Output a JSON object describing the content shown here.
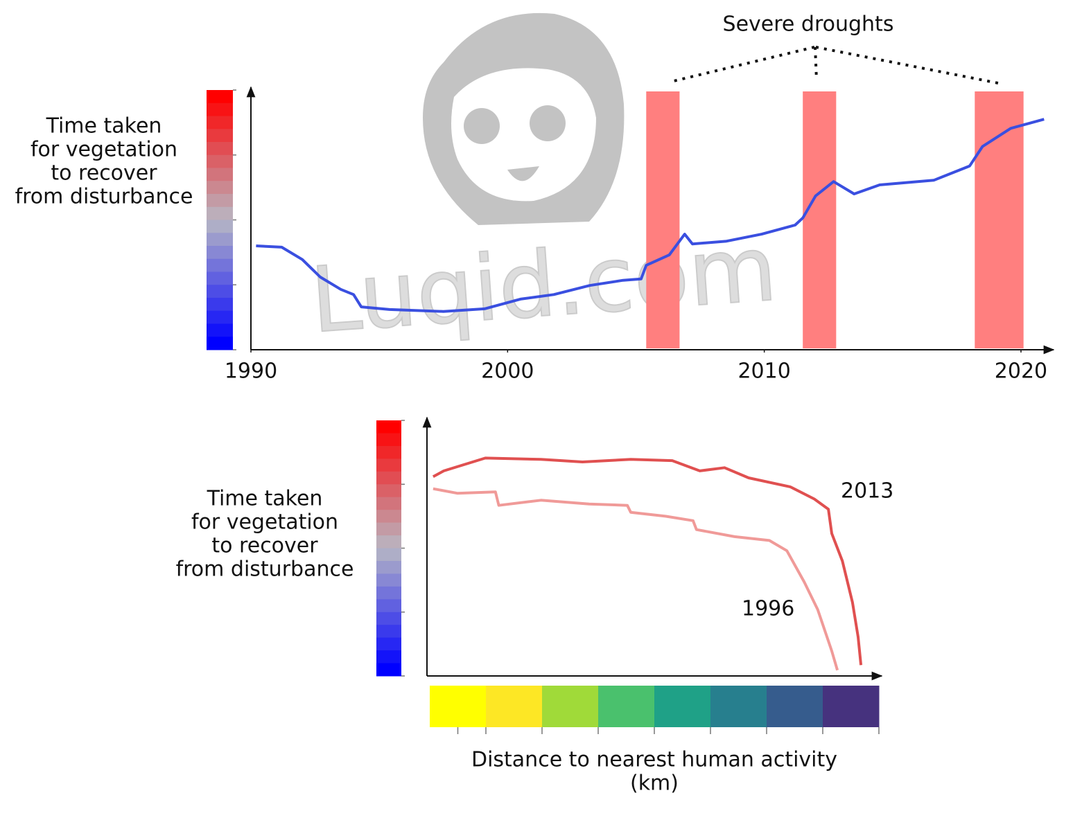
{
  "watermark": "Luqid.com",
  "chart_data": [
    {
      "type": "line",
      "y_label": [
        "Time taken",
        "for vegetation",
        "to recover",
        "from disturbance"
      ],
      "x": [
        1990.2,
        1991.2,
        1992,
        1992.7,
        1993.5,
        1994,
        1994.3,
        1995.4,
        1997.5,
        1999.1,
        2000.5,
        2001.8,
        2003.2,
        2004.5,
        2005.2,
        2005.4,
        2006.3,
        2006.9,
        2007.2,
        2008.5,
        2009.9,
        2011.2,
        2011.5,
        2012,
        2012.7,
        2013.5,
        2014.5,
        2016.6,
        2018,
        2018.5,
        2019.6,
        2020.9
      ],
      "series": [
        {
          "color": "#3a4fe0",
          "values": [
            1.6,
            1.58,
            1.39,
            1.12,
            0.93,
            0.85,
            0.66,
            0.62,
            0.59,
            0.63,
            0.78,
            0.85,
            0.99,
            1.07,
            1.09,
            1.3,
            1.46,
            1.78,
            1.63,
            1.67,
            1.78,
            1.92,
            2.03,
            2.37,
            2.59,
            2.4,
            2.54,
            2.61,
            2.83,
            3.13,
            3.41,
            3.55
          ]
        }
      ],
      "xlim": [
        1990,
        2021
      ],
      "xticks": [
        1990,
        2000,
        2010,
        2020
      ],
      "ylim": [
        0,
        4
      ],
      "yticks": [
        0,
        1,
        2,
        3,
        4
      ],
      "colorbar": [
        "#ff0000",
        "#b8b8c4",
        "#0000ff"
      ],
      "droughts": {
        "label": "Severe droughts",
        "color": "#ff7f7f",
        "spans": [
          [
            2005.4,
            2006.7
          ],
          [
            2011.5,
            2012.8
          ],
          [
            2018.2,
            2020.1
          ]
        ]
      }
    },
    {
      "type": "line",
      "y_label": [
        "Time taken",
        "for vegetation",
        "to recover",
        "from disturbance"
      ],
      "x_label": [
        "Distance to nearest human activity",
        "(km)"
      ],
      "series": [
        {
          "name": "2013",
          "color": "#e05050",
          "x": [
            0.06,
            0.25,
            0.99,
            1.98,
            2.72,
            3.58,
            4.32,
            4.81,
            5.25,
            5.68,
            6.42,
            6.85,
            7.1,
            7.16,
            7.35,
            7.53,
            7.63,
            7.68
          ],
          "values": [
            3.12,
            3.21,
            3.41,
            3.39,
            3.35,
            3.39,
            3.37,
            3.21,
            3.26,
            3.1,
            2.96,
            2.77,
            2.61,
            2.23,
            1.8,
            1.15,
            0.61,
            0.17
          ]
        },
        {
          "name": "1996",
          "color": "#f09a98",
          "x": [
            0.06,
            0.49,
            1.17,
            1.23,
            1.98,
            2.84,
            3.52,
            3.58,
            4.2,
            4.69,
            4.75,
            5.43,
            6.05,
            6.36,
            6.67,
            6.91,
            7.16,
            7.26
          ],
          "values": [
            2.93,
            2.86,
            2.88,
            2.67,
            2.75,
            2.69,
            2.67,
            2.56,
            2.5,
            2.43,
            2.29,
            2.18,
            2.12,
            1.96,
            1.47,
            1.04,
            0.39,
            0.09
          ]
        }
      ],
      "xlim": [
        0,
        8
      ],
      "xticks": [
        0.5,
        1,
        2,
        3,
        4,
        5,
        6,
        7,
        8
      ],
      "ylim": [
        0,
        4
      ],
      "yticks": [
        0,
        1,
        2,
        3,
        4
      ],
      "colorbar": [
        "#ff0000",
        "#b8b8c4",
        "#0000ff"
      ],
      "x_colorbar": [
        "#ffff00",
        "#fde725",
        "#a0da39",
        "#4ac16d",
        "#1fa187",
        "#277f8e",
        "#365c8d",
        "#46327e"
      ]
    }
  ]
}
